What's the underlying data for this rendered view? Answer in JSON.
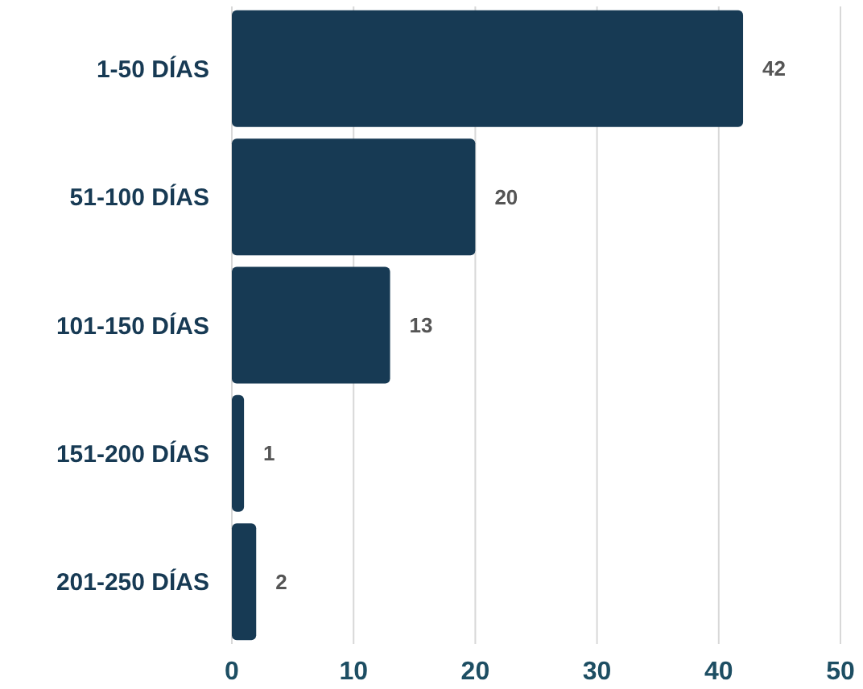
{
  "chart_data": {
    "type": "bar",
    "orientation": "horizontal",
    "categories": [
      "1-50 DÍAS",
      "51-100 DÍAS",
      "101-150 DÍAS",
      "151-200 DÍAS",
      "201-250 DÍAS"
    ],
    "values": [
      42,
      20,
      13,
      1,
      2
    ],
    "color": "#173a54",
    "xlim": [
      0,
      50
    ],
    "xticks": [
      0,
      10,
      20,
      30,
      40,
      50
    ],
    "grid": "x",
    "data_labels": true
  }
}
